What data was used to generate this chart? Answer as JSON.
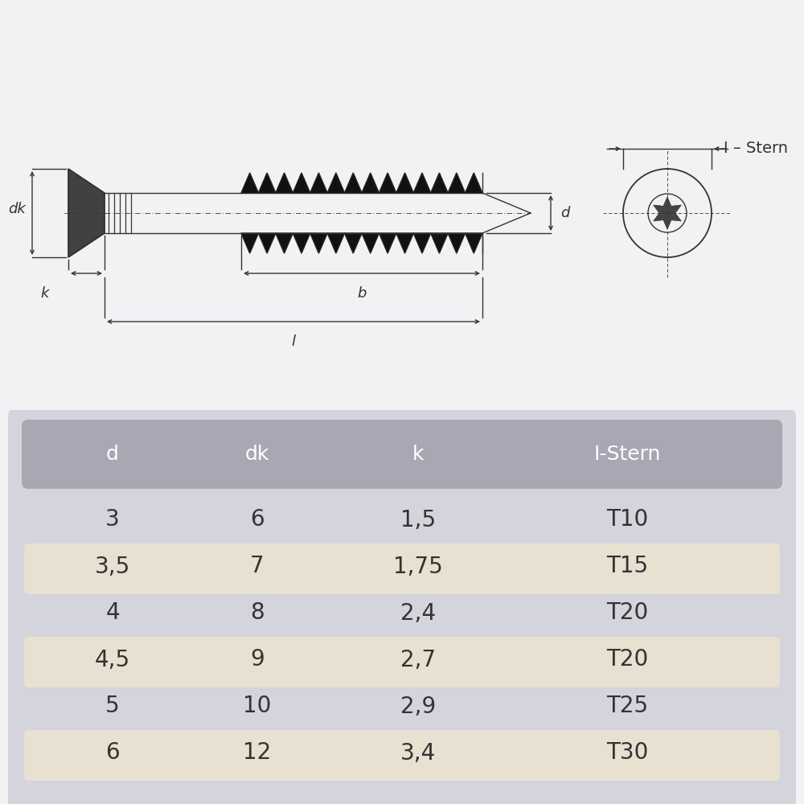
{
  "background_color": "#f2f2f5",
  "table_panel_bg": "#d8d8e0",
  "header_bg": "#a8a8b4",
  "row_alt_bg": "#e8e0d0",
  "row_normal_bg": "#f2f2f5",
  "header_text_color": "#ffffff",
  "cell_text_color": "#333333",
  "drawing_bg": "#ffffff",
  "line_color": "#333333",
  "columns": [
    "d",
    "dk",
    "k",
    "I-Stern"
  ],
  "rows": [
    [
      "3",
      "6",
      "1,5",
      "T10"
    ],
    [
      "3,5",
      "7",
      "1,75",
      "T15"
    ],
    [
      "4",
      "8",
      "2,4",
      "T20"
    ],
    [
      "4,5",
      "9",
      "2,7",
      "T20"
    ],
    [
      "5",
      "10",
      "2,9",
      "T25"
    ],
    [
      "6",
      "12",
      "3,4",
      "T30"
    ]
  ],
  "alt_rows": [
    1,
    3,
    5
  ],
  "header_fontsize": 18,
  "cell_fontsize": 20,
  "diagram_label_fontsize": 13
}
